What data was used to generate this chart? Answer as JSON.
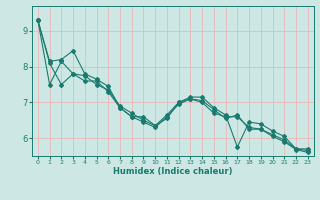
{
  "xlabel": "Humidex (Indice chaleur)",
  "ylabel": "",
  "xlim": [
    -0.5,
    23.5
  ],
  "ylim": [
    5.5,
    9.7
  ],
  "yticks": [
    6,
    7,
    8,
    9
  ],
  "xticks": [
    0,
    1,
    2,
    3,
    4,
    5,
    6,
    7,
    8,
    9,
    10,
    11,
    12,
    13,
    14,
    15,
    16,
    17,
    18,
    19,
    20,
    21,
    22,
    23
  ],
  "bg_color": "#cde8e4",
  "grid_color": "#e8b8b8",
  "line_color": "#1a7a6e",
  "series": [
    [
      9.3,
      8.15,
      8.2,
      8.45,
      7.8,
      7.65,
      7.45,
      6.85,
      6.6,
      6.6,
      6.35,
      6.65,
      7.0,
      7.15,
      7.15,
      6.85,
      6.65,
      5.75,
      6.45,
      6.4,
      6.2,
      6.05,
      5.7,
      5.7
    ],
    [
      9.3,
      8.1,
      7.5,
      7.8,
      7.75,
      7.5,
      7.35,
      6.9,
      6.7,
      6.5,
      6.35,
      6.55,
      7.0,
      7.1,
      7.0,
      6.7,
      6.6,
      6.6,
      6.3,
      6.25,
      6.1,
      5.95,
      5.7,
      5.65
    ],
    [
      9.3,
      7.5,
      8.15,
      7.8,
      7.6,
      7.6,
      7.3,
      6.85,
      6.6,
      6.45,
      6.3,
      6.6,
      6.95,
      7.1,
      7.05,
      6.8,
      6.55,
      6.65,
      6.25,
      6.25,
      6.05,
      5.9,
      5.68,
      5.6
    ]
  ]
}
